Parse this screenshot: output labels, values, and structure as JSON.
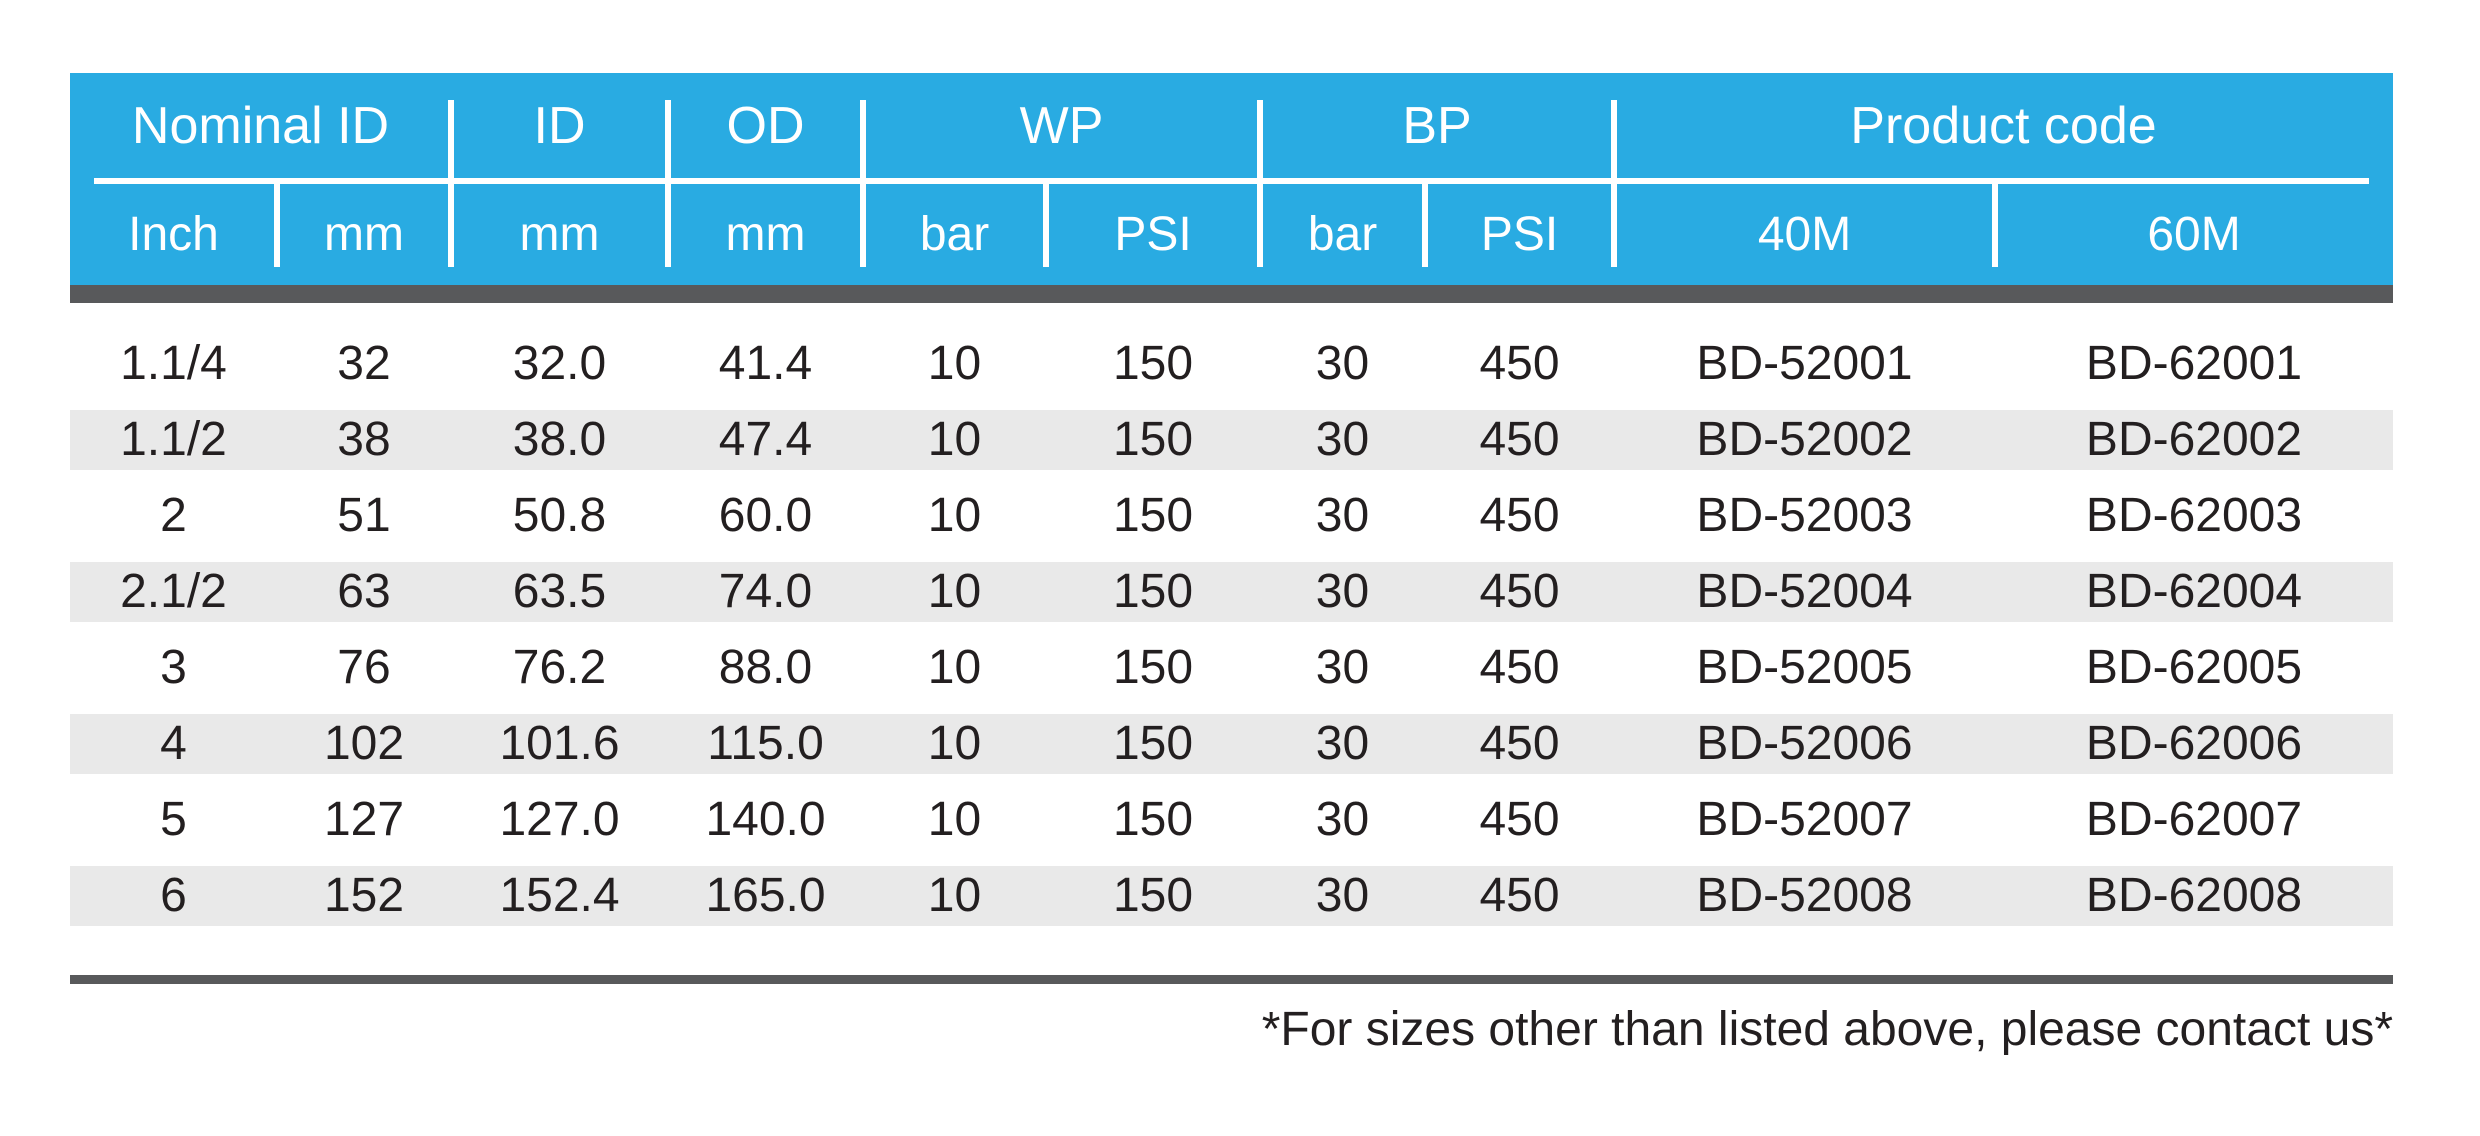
{
  "page": {
    "footnote": "*For sizes other than listed above, please contact us*"
  },
  "colors": {
    "header_blue": "#29ABE2",
    "header_text": "#FFFFFF",
    "dark_bar_gray": "#58595B",
    "stripe_gray": "#E9E9E9",
    "body_text": "#231F20"
  },
  "table": {
    "group_headers": [
      {
        "label": "Nominal ID",
        "span": 2
      },
      {
        "label": "ID",
        "span": 1
      },
      {
        "label": "OD",
        "span": 1
      },
      {
        "label": "WP",
        "span": 2
      },
      {
        "label": "BP",
        "span": 2
      },
      {
        "label": "Product code",
        "span": 2
      }
    ],
    "sub_headers": [
      "Inch",
      "mm",
      "mm",
      "mm",
      "bar",
      "PSI",
      "bar",
      "PSI",
      "40M",
      "60M"
    ],
    "rows": [
      {
        "cells": [
          "1.1/4",
          "32",
          "32.0",
          "41.4",
          "10",
          "150",
          "30",
          "450",
          "BD-52001",
          "BD-62001"
        ]
      },
      {
        "cells": [
          "1.1/2",
          "38",
          "38.0",
          "47.4",
          "10",
          "150",
          "30",
          "450",
          "BD-52002",
          "BD-62002"
        ]
      },
      {
        "cells": [
          "2",
          "51",
          "50.8",
          "60.0",
          "10",
          "150",
          "30",
          "450",
          "BD-52003",
          "BD-62003"
        ]
      },
      {
        "cells": [
          "2.1/2",
          "63",
          "63.5",
          "74.0",
          "10",
          "150",
          "30",
          "450",
          "BD-52004",
          "BD-62004"
        ]
      },
      {
        "cells": [
          "3",
          "76",
          "76.2",
          "88.0",
          "10",
          "150",
          "30",
          "450",
          "BD-52005",
          "BD-62005"
        ]
      },
      {
        "cells": [
          "4",
          "102",
          "101.6",
          "115.0",
          "10",
          "150",
          "30",
          "450",
          "BD-52006",
          "BD-62006"
        ]
      },
      {
        "cells": [
          "5",
          "127",
          "127.0",
          "140.0",
          "10",
          "150",
          "30",
          "450",
          "BD-52007",
          "BD-62007"
        ]
      },
      {
        "cells": [
          "6",
          "152",
          "152.4",
          "165.0",
          "10",
          "150",
          "30",
          "450",
          "BD-52008",
          "BD-62008"
        ]
      }
    ]
  }
}
